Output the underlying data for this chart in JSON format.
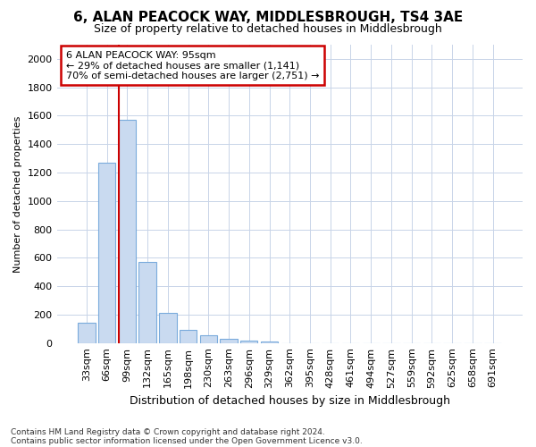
{
  "title": "6, ALAN PEACOCK WAY, MIDDLESBROUGH, TS4 3AE",
  "subtitle": "Size of property relative to detached houses in Middlesbrough",
  "xlabel": "Distribution of detached houses by size in Middlesbrough",
  "ylabel": "Number of detached properties",
  "footnote1": "Contains HM Land Registry data © Crown copyright and database right 2024.",
  "footnote2": "Contains public sector information licensed under the Open Government Licence v3.0.",
  "categories": [
    "33sqm",
    "66sqm",
    "99sqm",
    "132sqm",
    "165sqm",
    "198sqm",
    "230sqm",
    "263sqm",
    "296sqm",
    "329sqm",
    "362sqm",
    "395sqm",
    "428sqm",
    "461sqm",
    "494sqm",
    "527sqm",
    "559sqm",
    "592sqm",
    "625sqm",
    "658sqm",
    "691sqm"
  ],
  "values": [
    140,
    1270,
    1570,
    570,
    215,
    95,
    55,
    30,
    18,
    10,
    0,
    0,
    0,
    0,
    0,
    0,
    0,
    0,
    0,
    0,
    0
  ],
  "bar_color": "#c9daf0",
  "bar_edge_color": "#7aabdc",
  "vline_bar_index": 2,
  "vline_color": "#cc0000",
  "annotation_text_line1": "6 ALAN PEACOCK WAY: 95sqm",
  "annotation_text_line2": "← 29% of detached houses are smaller (1,141)",
  "annotation_text_line3": "70% of semi-detached houses are larger (2,751) →",
  "ylim": [
    0,
    2100
  ],
  "yticks": [
    0,
    200,
    400,
    600,
    800,
    1000,
    1200,
    1400,
    1600,
    1800,
    2000
  ],
  "background_color": "#ffffff",
  "grid_color": "#c8d4e8",
  "title_fontsize": 11,
  "subtitle_fontsize": 9,
  "xlabel_fontsize": 9,
  "ylabel_fontsize": 8,
  "tick_fontsize": 8,
  "footnote_fontsize": 6.5
}
